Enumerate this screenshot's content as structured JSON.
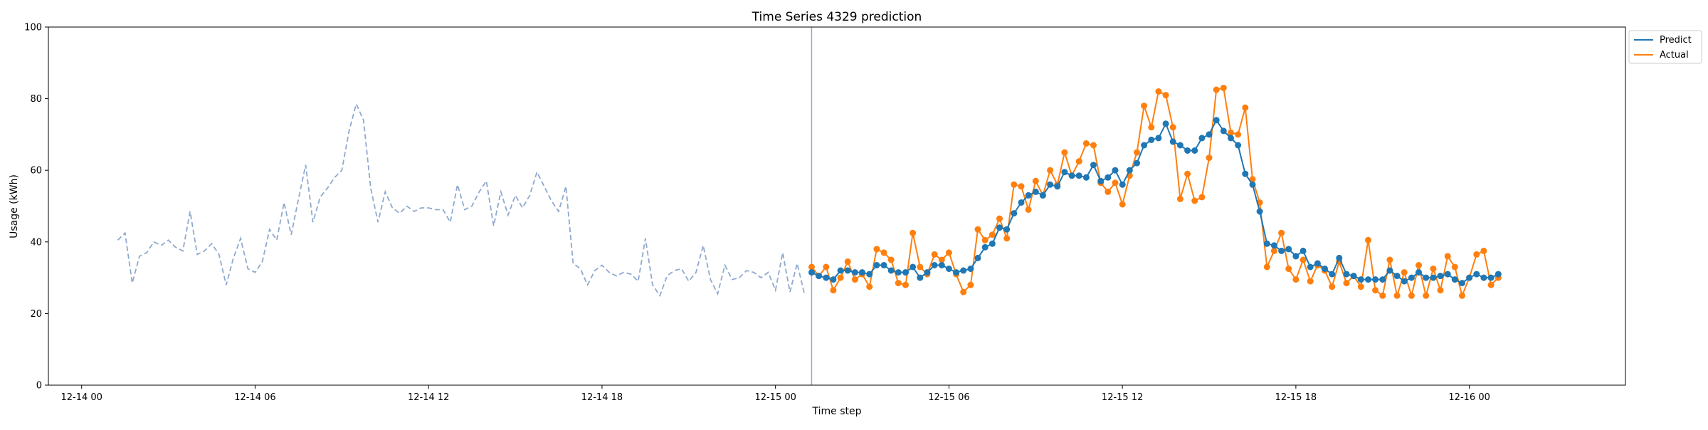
{
  "chart_data": {
    "type": "line",
    "title": "Time Series 4329 prediction",
    "xlabel": "Time step",
    "ylabel": "Usage (kWh)",
    "ylim": [
      0,
      100
    ],
    "yticks": [
      0,
      20,
      40,
      60,
      80,
      100
    ],
    "xlim": [
      "2023-12-13T22:51",
      "2023-12-16T05:24"
    ],
    "xticks": [
      {
        "t": "2023-12-14T00:00",
        "label": "12-14 00"
      },
      {
        "t": "2023-12-14T06:00",
        "label": "12-14 06"
      },
      {
        "t": "2023-12-14T12:00",
        "label": "12-14 12"
      },
      {
        "t": "2023-12-14T18:00",
        "label": "12-14 18"
      },
      {
        "t": "2023-12-15T00:00",
        "label": "12-15 00"
      },
      {
        "t": "2023-12-15T06:00",
        "label": "12-15 06"
      },
      {
        "t": "2023-12-15T12:00",
        "label": "12-15 12"
      },
      {
        "t": "2023-12-15T18:00",
        "label": "12-15 18"
      },
      {
        "t": "2023-12-16T00:00",
        "label": "12-16 00"
      }
    ],
    "legend_position": "outside-top-right",
    "grid": false,
    "forecast_start": "2023-12-15T01:15",
    "history": {
      "start": "2023-12-14T01:15",
      "interval_minutes": 15,
      "color": "#8fa9cf",
      "values": [
        40.5,
        42.5,
        28.5,
        36.0,
        37.0,
        40.0,
        39.0,
        40.5,
        38.5,
        37.5,
        48.5,
        36.5,
        37.5,
        39.5,
        36.5,
        28.0,
        35.5,
        41.0,
        32.5,
        31.5,
        34.5,
        43.5,
        40.5,
        51.0,
        42.0,
        52.0,
        61.5,
        45.5,
        52.5,
        55.0,
        58.0,
        60.0,
        71.0,
        78.5,
        74.0,
        55.0,
        45.5,
        54.0,
        49.5,
        48.0,
        50.0,
        48.5,
        49.5,
        49.5,
        49.0,
        49.0,
        45.5,
        56.0,
        49.0,
        50.0,
        54.0,
        57.0,
        44.5,
        54.0,
        47.5,
        53.0,
        49.5,
        53.0,
        59.5,
        55.5,
        51.5,
        48.5,
        55.5,
        34.0,
        32.5,
        28.0,
        32.0,
        33.5,
        31.5,
        30.5,
        31.5,
        31.0,
        29.0,
        41.0,
        28.0,
        25.0,
        30.5,
        32.0,
        32.5,
        29.0,
        31.5,
        39.0,
        29.5,
        25.5,
        33.5,
        29.5,
        30.0,
        32.0,
        31.5,
        30.0,
        31.5,
        26.5,
        37.0,
        26.0,
        34.0,
        25.5
      ]
    },
    "series": [
      {
        "name": "Predict",
        "color": "#1f77b4",
        "start": "2023-12-15T01:15",
        "interval_minutes": 15,
        "values": [
          31.5,
          30.5,
          30.0,
          29.5,
          32.0,
          32.0,
          31.5,
          31.5,
          31.0,
          33.5,
          33.5,
          32.0,
          31.5,
          31.5,
          33.0,
          30.0,
          31.5,
          33.5,
          33.5,
          32.5,
          31.5,
          32.0,
          32.5,
          35.5,
          38.5,
          39.5,
          44.0,
          43.5,
          48.0,
          51.0,
          53.0,
          54.0,
          53.0,
          56.0,
          55.5,
          59.5,
          58.5,
          58.5,
          58.0,
          61.5,
          57.0,
          58.0,
          60.0,
          56.0,
          60.0,
          62.0,
          67.0,
          68.5,
          69.0,
          73.0,
          68.0,
          67.0,
          65.5,
          65.5,
          69.0,
          70.0,
          74.0,
          71.0,
          69.0,
          67.0,
          59.0,
          56.0,
          48.5,
          39.5,
          39.0,
          37.5,
          38.0,
          36.0,
          37.5,
          33.0,
          34.0,
          32.5,
          31.0,
          35.5,
          31.0,
          30.5,
          29.5,
          29.5,
          29.5,
          29.5,
          32.0,
          30.5,
          29.0,
          30.0,
          31.5,
          30.0,
          30.0,
          30.5,
          31.0,
          29.5,
          28.5,
          30.0,
          31.0,
          30.0,
          30.0,
          31.0
        ]
      },
      {
        "name": "Actual",
        "color": "#ff7f0e",
        "start": "2023-12-15T01:15",
        "interval_minutes": 15,
        "values": [
          33.0,
          30.5,
          33.0,
          26.5,
          30.0,
          34.5,
          29.5,
          31.0,
          27.5,
          38.0,
          37.0,
          35.0,
          28.5,
          28.0,
          42.5,
          33.0,
          31.0,
          36.5,
          35.0,
          37.0,
          31.0,
          26.0,
          28.0,
          43.5,
          40.5,
          42.0,
          46.5,
          41.0,
          56.0,
          55.5,
          49.0,
          57.0,
          53.0,
          60.0,
          56.0,
          65.0,
          58.5,
          62.5,
          67.5,
          67.0,
          56.5,
          54.0,
          56.5,
          50.5,
          58.5,
          65.0,
          78.0,
          72.0,
          82.0,
          81.0,
          72.0,
          52.0,
          59.0,
          51.5,
          52.5,
          63.5,
          82.5,
          83.0,
          70.5,
          70.0,
          77.5,
          57.5,
          51.0,
          33.0,
          37.5,
          42.5,
          32.5,
          29.5,
          35.0,
          29.0,
          33.5,
          32.0,
          27.5,
          34.5,
          28.5,
          30.5,
          27.5,
          40.5,
          26.5,
          25.0,
          35.0,
          25.0,
          31.5,
          25.0,
          33.5,
          25.0,
          32.5,
          26.5,
          36.0,
          33.0,
          25.0,
          30.0,
          36.5,
          37.5,
          28.0,
          30.0
        ]
      }
    ]
  }
}
